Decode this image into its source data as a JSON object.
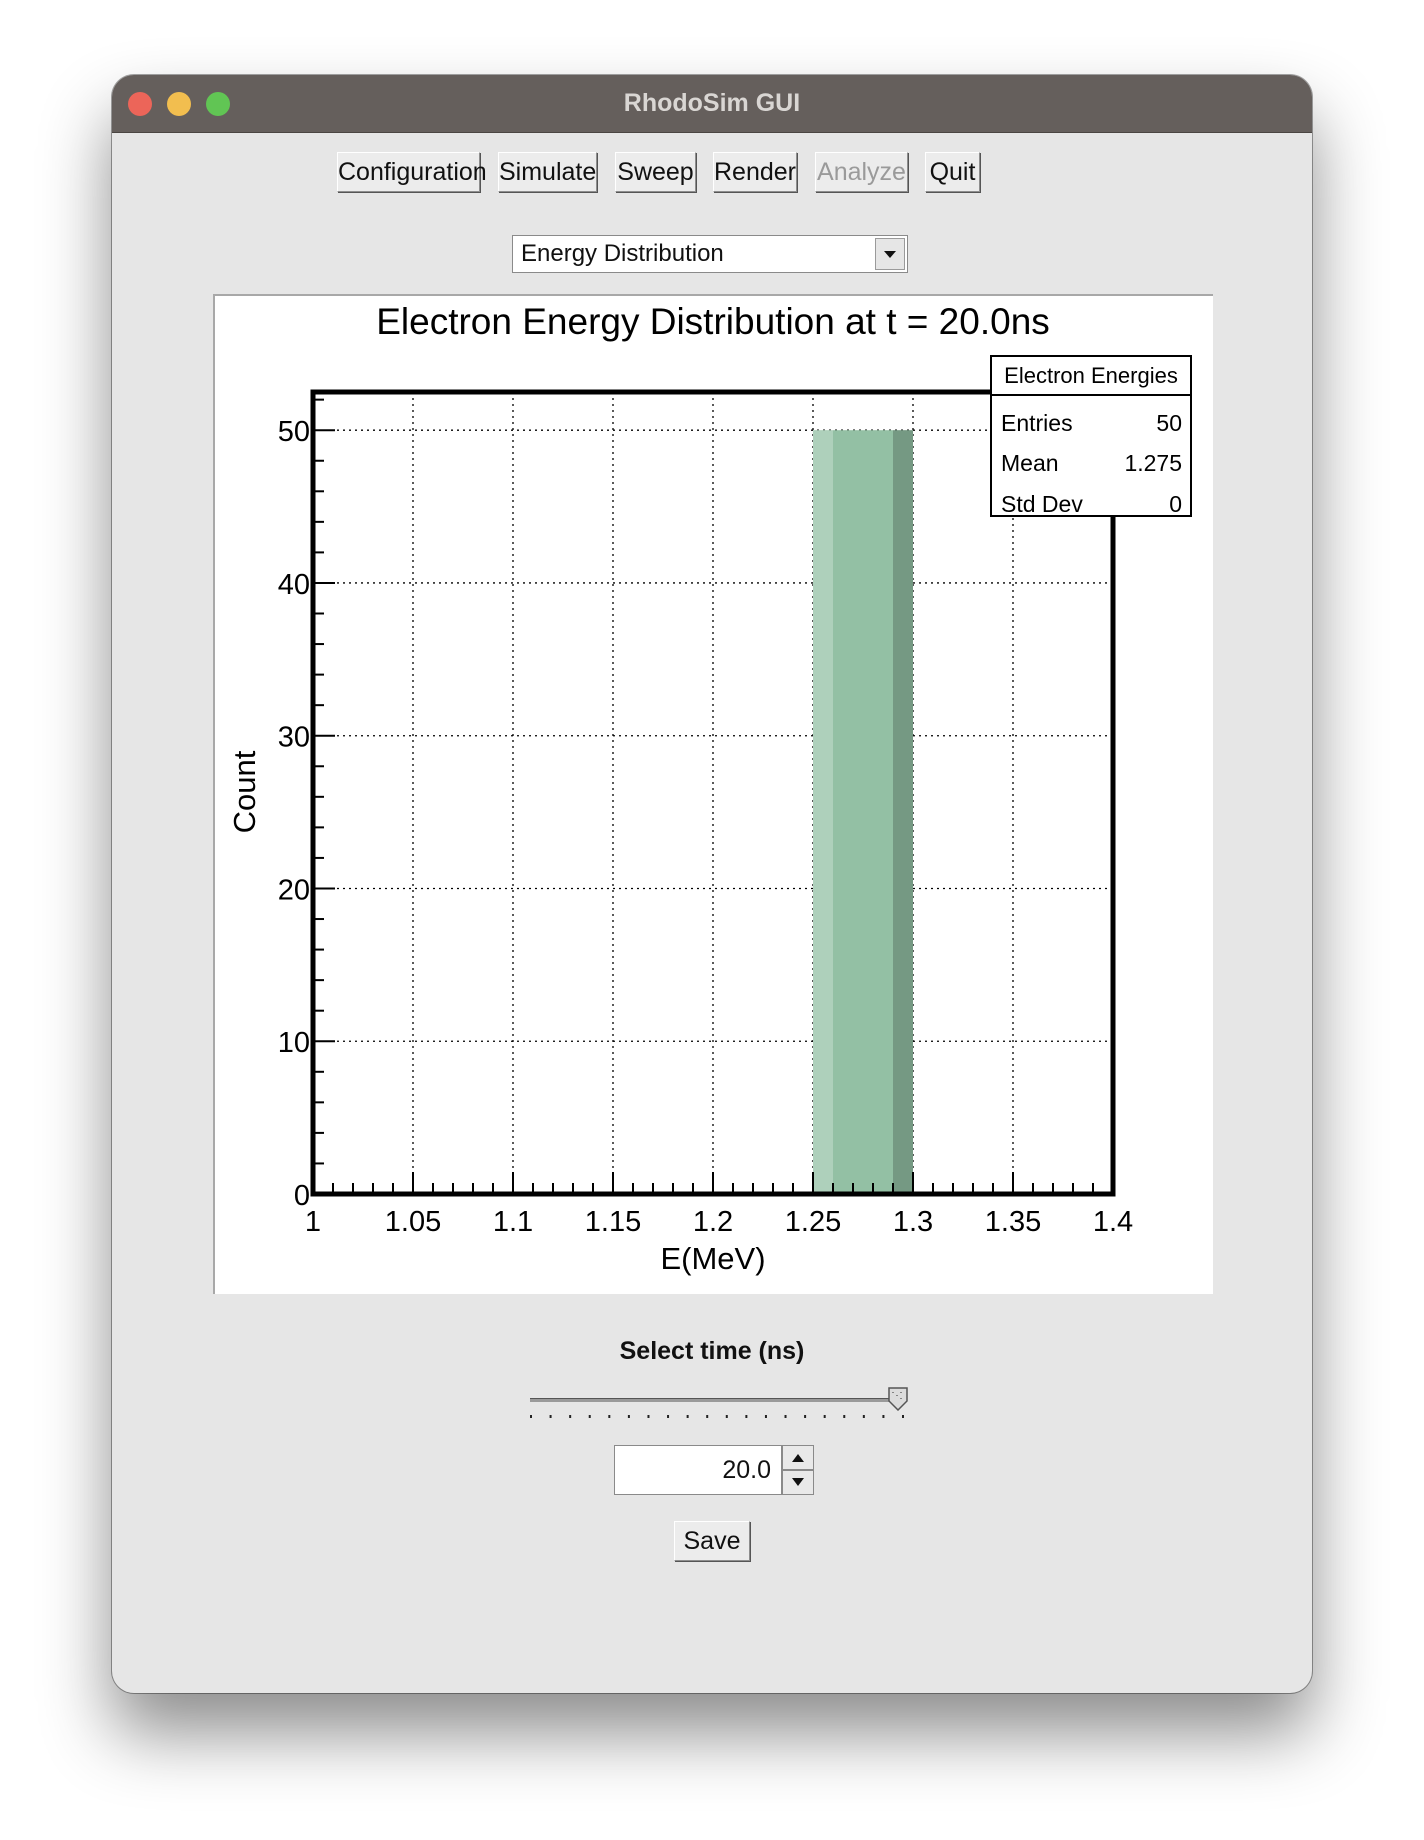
{
  "window": {
    "title": "RhodoSim GUI"
  },
  "toolbar": {
    "buttons": [
      {
        "label": "Configuration",
        "enabled": true
      },
      {
        "label": "Simulate",
        "enabled": true
      },
      {
        "label": "Sweep",
        "enabled": true
      },
      {
        "label": "Render",
        "enabled": true
      },
      {
        "label": "Analyze",
        "enabled": false
      },
      {
        "label": "Quit",
        "enabled": true
      }
    ]
  },
  "view_select": {
    "value": "Energy Distribution"
  },
  "chart_data": {
    "type": "bar",
    "title": "Electron Energy Distribution at t = 20.0ns",
    "xlabel": "E(MeV)",
    "ylabel": "Count",
    "xlim": [
      1.0,
      1.4
    ],
    "ylim": [
      0,
      52.5
    ],
    "x_ticks": [
      "1",
      "1.05",
      "1.1",
      "1.15",
      "1.2",
      "1.25",
      "1.3",
      "1.35",
      "1.4"
    ],
    "y_ticks": [
      "0",
      "10",
      "20",
      "30",
      "40",
      "50"
    ],
    "grid": true,
    "bars": [
      {
        "x_start": 1.25,
        "x_end": 1.3,
        "value": 50
      }
    ],
    "bar_color": "#93c0a4",
    "stats_box": {
      "title": "Electron Energies",
      "rows": [
        {
          "label": "Entries",
          "value": "50"
        },
        {
          "label": "Mean",
          "value": "1.275"
        },
        {
          "label": "Std Dev",
          "value": "0"
        }
      ]
    }
  },
  "time_control": {
    "label": "Select time (ns)",
    "value": "20.0",
    "slider_fraction": 1.0
  },
  "save_button": {
    "label": "Save"
  }
}
